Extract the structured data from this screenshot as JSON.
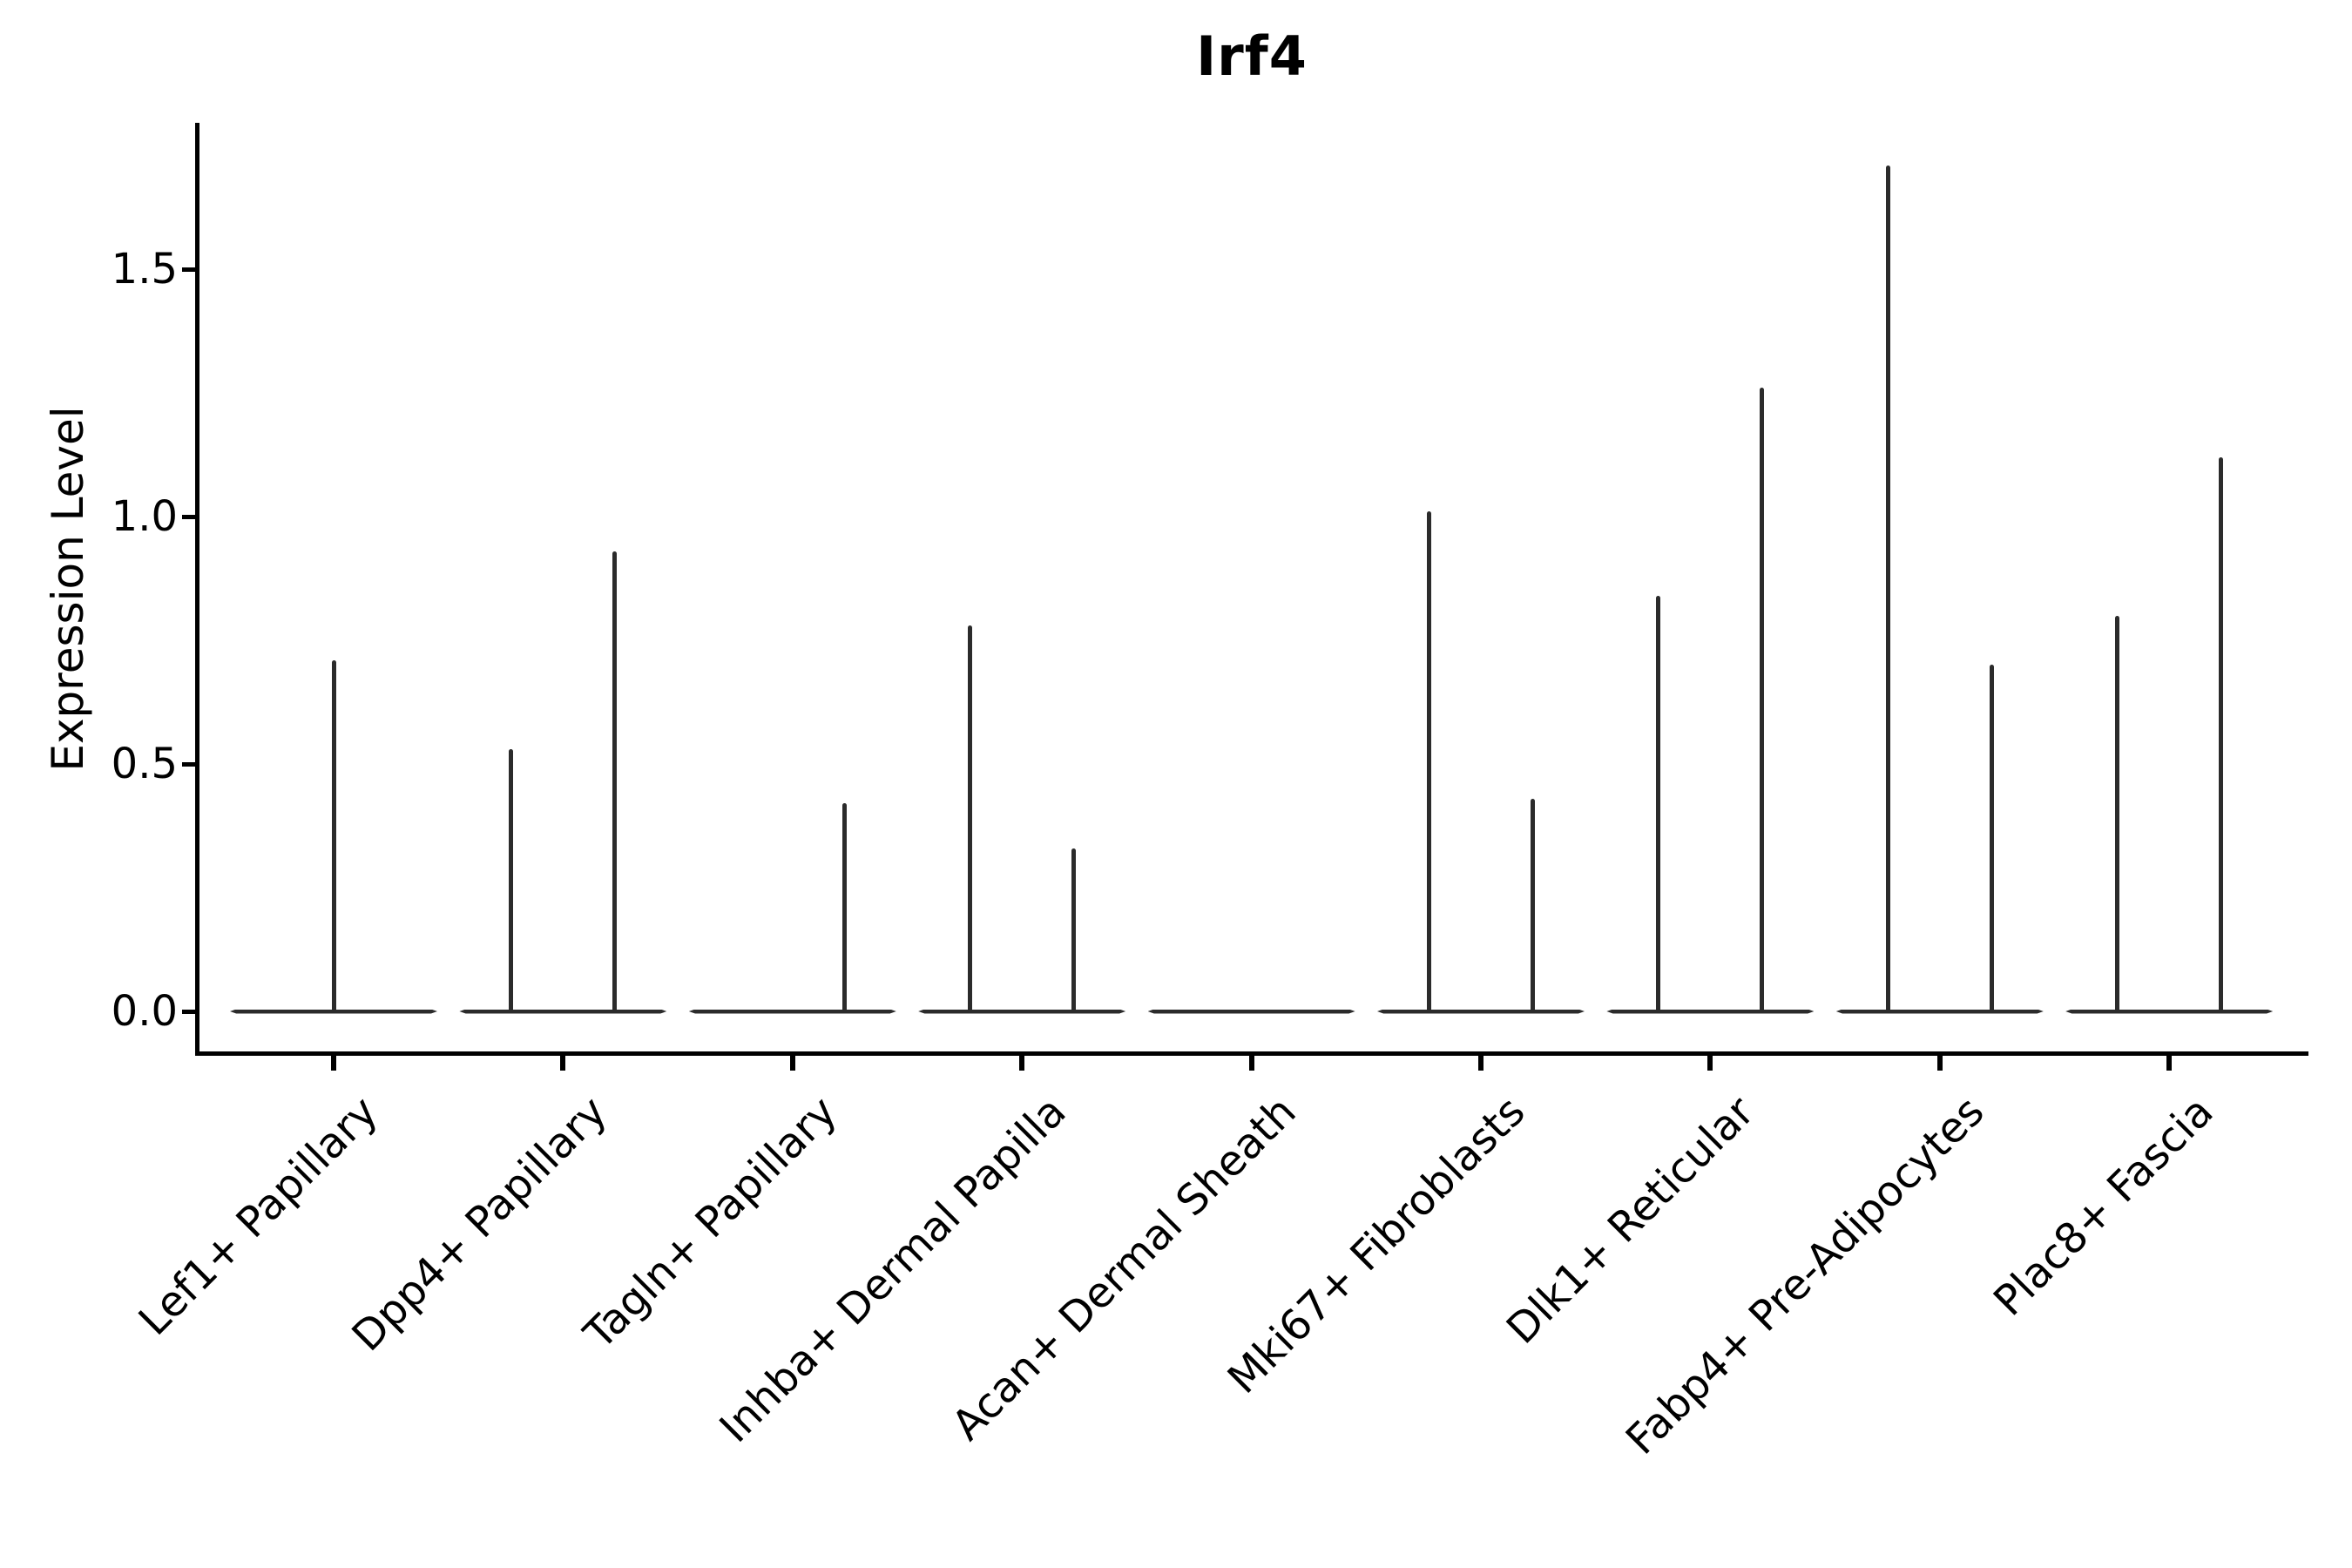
{
  "chart_data": {
    "type": "violin",
    "title": "Irf4",
    "ylabel": "Expression Level",
    "xlabel": "",
    "y_ticks": [
      0.0,
      0.5,
      1.0,
      1.5
    ],
    "y_tick_labels": [
      "0.0",
      "0.5",
      "1.0",
      "1.5"
    ],
    "ylim": [
      -0.08,
      1.8
    ],
    "grid": false,
    "legend_position": "none",
    "x_tick_rotation_deg": 45,
    "categories": [
      "Lef1+ Papillary",
      "Dpp4+ Papillary",
      "Tagln+ Papillary",
      "Inhba+ Dermal Papilla",
      "Acan+ Dermal Sheath",
      "Mki67+ Fibroblasts",
      "Dlk1+ Reticular",
      "Fabp4+ Pre-Adipocytes",
      "Plac8+ Fascia"
    ],
    "violins": [
      {
        "category": "Lef1+ Papillary",
        "zero_baseline": true,
        "spikes": [
          {
            "pos": "center",
            "max_expression": 0.71
          }
        ]
      },
      {
        "category": "Dpp4+ Papillary",
        "zero_baseline": true,
        "spikes": [
          {
            "pos": "left",
            "max_expression": 0.53
          },
          {
            "pos": "right",
            "max_expression": 0.93
          }
        ]
      },
      {
        "category": "Tagln+ Papillary",
        "zero_baseline": true,
        "spikes": [
          {
            "pos": "right",
            "max_expression": 0.42
          }
        ]
      },
      {
        "category": "Inhba+ Dermal Papilla",
        "zero_baseline": true,
        "spikes": [
          {
            "pos": "left",
            "max_expression": 0.78
          },
          {
            "pos": "right",
            "max_expression": 0.33
          }
        ]
      },
      {
        "category": "Acan+ Dermal Sheath",
        "zero_baseline": true,
        "spikes": []
      },
      {
        "category": "Mki67+ Fibroblasts",
        "zero_baseline": true,
        "spikes": [
          {
            "pos": "left",
            "max_expression": 1.01
          },
          {
            "pos": "right",
            "max_expression": 0.43
          }
        ]
      },
      {
        "category": "Dlk1+ Reticular",
        "zero_baseline": true,
        "spikes": [
          {
            "pos": "left",
            "max_expression": 0.84
          },
          {
            "pos": "right",
            "max_expression": 1.26
          }
        ]
      },
      {
        "category": "Fabp4+ Pre-Adipocytes",
        "zero_baseline": true,
        "spikes": [
          {
            "pos": "left",
            "max_expression": 1.71
          },
          {
            "pos": "right",
            "max_expression": 0.7
          }
        ]
      },
      {
        "category": "Plac8+ Fascia",
        "zero_baseline": true,
        "spikes": [
          {
            "pos": "left",
            "max_expression": 0.8
          },
          {
            "pos": "right",
            "max_expression": 1.12
          }
        ]
      }
    ],
    "colors": {
      "violin_stroke": "#2b2b2b",
      "axis": "#000000",
      "text": "#000000",
      "background": "#ffffff"
    }
  }
}
